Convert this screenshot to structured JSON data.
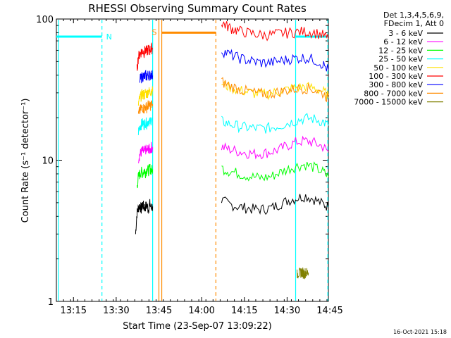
{
  "chart_data": {
    "type": "line",
    "title": "RHESSI Observing Summary Count Rates",
    "xlabel": "Start Time (23-Sep-07 13:09:22)",
    "ylabel": "Count Rate (s⁻¹ detector⁻¹)",
    "yscale": "log",
    "ylim": [
      1,
      100
    ],
    "xlim_minutes": [
      13.5,
      109.0
    ],
    "x_ticks": [
      {
        "label": "13:15",
        "minute": 19.5
      },
      {
        "label": "13:30",
        "minute": 34.5
      },
      {
        "label": "13:45",
        "minute": 49.5
      },
      {
        "label": "14:00",
        "minute": 64.5
      },
      {
        "label": "14:15",
        "minute": 79.5
      },
      {
        "label": "14:30",
        "minute": 94.5
      },
      {
        "label": "14:45",
        "minute": 109.5
      }
    ],
    "y_ticks": [
      {
        "label": "1",
        "value": 1
      },
      {
        "label": "10",
        "value": 10
      },
      {
        "label": "100",
        "value": 100
      }
    ],
    "legend_header": [
      "Det 1,3,4,5,6,9,",
      "FDecim 1, Att 0"
    ],
    "legend_position": "right",
    "series": [
      {
        "name": "3 - 6 keV",
        "color": "#000000",
        "segments": [
          {
            "x": [
              41.3,
              41.8,
              42.3,
              42.8,
              43.3,
              43.8,
              44.3,
              44.8,
              45.3,
              45.8,
              46.3,
              46.8,
              47.3
            ],
            "y": [
              3.0,
              4.2,
              4.6,
              4.8,
              4.5,
              4.9,
              4.6,
              4.7,
              4.8,
              4.5,
              4.9,
              4.6,
              4.7
            ]
          },
          {
            "x": [
              71.5,
              74,
              77,
              80,
              83,
              86,
              89,
              92,
              95,
              98,
              101,
              104,
              107,
              109
            ],
            "y": [
              5.2,
              4.9,
              4.7,
              4.6,
              4.5,
              4.5,
              4.6,
              4.9,
              5.2,
              5.4,
              5.6,
              5.3,
              4.9,
              4.7
            ]
          }
        ]
      },
      {
        "name": "6 - 12 keV",
        "color": "#ff00ff",
        "segments": [
          {
            "x": [
              42.3,
              42.8,
              43.3,
              43.8,
              44.3,
              44.8,
              45.3,
              45.8,
              46.3,
              46.8,
              47.3
            ],
            "y": [
              10.3,
              11.0,
              11.4,
              11.7,
              11.3,
              12.0,
              11.5,
              12.2,
              11.8,
              12.4,
              12.0
            ]
          },
          {
            "x": [
              71.5,
              74,
              77,
              80,
              83,
              86,
              89,
              92,
              95,
              98,
              101,
              104,
              107,
              109
            ],
            "y": [
              12.4,
              12.0,
              11.6,
              11.3,
              11.1,
              11.2,
              11.5,
              12.0,
              12.8,
              13.5,
              13.7,
              13.3,
              12.5,
              11.5
            ]
          }
        ]
      },
      {
        "name": "12 - 25 keV",
        "color": "#00ff00",
        "segments": [
          {
            "x": [
              41.8,
              42.3,
              42.8,
              43.3,
              43.8,
              44.3,
              44.8,
              45.3,
              45.8,
              46.3,
              46.8,
              47.3
            ],
            "y": [
              6.5,
              7.6,
              8.0,
              8.3,
              8.1,
              8.5,
              8.2,
              8.7,
              8.4,
              8.8,
              8.5,
              8.6
            ]
          },
          {
            "x": [
              71.5,
              74,
              77,
              80,
              83,
              86,
              89,
              92,
              95,
              98,
              101,
              104,
              107,
              109
            ],
            "y": [
              8.8,
              8.4,
              8.1,
              7.8,
              7.6,
              7.5,
              7.7,
              8.2,
              8.7,
              9.1,
              9.3,
              8.9,
              8.3,
              7.6
            ]
          }
        ]
      },
      {
        "name": "25 - 50 keV",
        "color": "#00ffff",
        "segments": [
          {
            "x": [
              42.3,
              42.8,
              43.3,
              43.8,
              44.3,
              44.8,
              45.3,
              45.8,
              46.3,
              46.8,
              47.3
            ],
            "y": [
              16.0,
              17.3,
              17.9,
              18.4,
              17.8,
              18.7,
              18.1,
              19.2,
              18.5,
              19.5,
              18.9
            ]
          },
          {
            "x": [
              71.5,
              74,
              77,
              80,
              83,
              86,
              89,
              92,
              95,
              98,
              101,
              104,
              107,
              109
            ],
            "y": [
              18.9,
              18.1,
              17.5,
              17.1,
              16.9,
              16.8,
              17.0,
              17.6,
              18.4,
              19.2,
              19.8,
              19.6,
              18.8,
              17.6
            ]
          }
        ]
      },
      {
        "name": "50 - 100 keV",
        "color": "#ffe000",
        "segments": [
          {
            "x": [
              42.3,
              42.8,
              43.3,
              43.8,
              44.3,
              44.8,
              45.3,
              45.8,
              46.3,
              46.8,
              47.3
            ],
            "y": [
              25.0,
              27.5,
              28.7,
              29.5,
              28.8,
              30.2,
              29.6,
              31.0,
              30.3,
              31.6,
              30.8
            ]
          },
          {
            "x": [
              71.5,
              74,
              77,
              80,
              83,
              86,
              89,
              92,
              95,
              98,
              101,
              104,
              107,
              109
            ],
            "y": [
              35.2,
              33.2,
              31.6,
              30.6,
              29.8,
              29.4,
              29.8,
              30.8,
              31.8,
              32.8,
              33.2,
              32.5,
              30.8,
              29.0
            ]
          }
        ]
      },
      {
        "name": "100 - 300 keV",
        "color": "#ff0000",
        "segments": [
          {
            "x": [
              41.8,
              42.3,
              42.8,
              43.3,
              43.8,
              44.3,
              44.8,
              45.3,
              45.8,
              46.3,
              46.8,
              47.3
            ],
            "y": [
              44.0,
              54.0,
              57.0,
              58.5,
              59.5,
              58.0,
              60.5,
              59.0,
              61.5,
              60.0,
              62.5,
              61.0
            ]
          },
          {
            "x": [
              71.5,
              73,
              75,
              77,
              80,
              83,
              86,
              89,
              92,
              95,
              98,
              101,
              104,
              107,
              109
            ],
            "y": [
              95.0,
              90.0,
              86.0,
              83.0,
              80.5,
              78.5,
              77.0,
              77.5,
              79.0,
              80.0,
              81.0,
              81.5,
              80.5,
              77.0,
              72.0
            ]
          }
        ]
      },
      {
        "name": "300 - 800 keV",
        "color": "#0000ff",
        "segments": [
          {
            "x": [
              42.8,
              43.3,
              43.8,
              44.3,
              44.8,
              45.3,
              45.8,
              46.3,
              46.8,
              47.3
            ],
            "y": [
              37.0,
              38.5,
              39.5,
              38.8,
              40.0,
              39.2,
              40.5,
              39.6,
              40.8,
              39.8
            ]
          },
          {
            "x": [
              71.5,
              74,
              77,
              80,
              83,
              86,
              89,
              92,
              95,
              98,
              101,
              104,
              107,
              109
            ],
            "y": [
              60.0,
              56.5,
              53.5,
              51.5,
              50.0,
              49.0,
              49.2,
              50.5,
              52.0,
              53.0,
              53.2,
              51.5,
              48.0,
              43.5
            ]
          }
        ]
      },
      {
        "name": "800 - 7000 keV",
        "color": "#ff8c00",
        "segments": [
          {
            "x": [
              42.3,
              42.8,
              43.3,
              43.8,
              44.3,
              44.8,
              45.3,
              45.8,
              46.3,
              46.8,
              47.3
            ],
            "y": [
              21.0,
              22.5,
              23.2,
              23.8,
              23.1,
              24.2,
              23.5,
              24.8,
              24.0,
              25.0,
              24.3
            ]
          },
          {
            "x": [
              71.5,
              74,
              77,
              80,
              83,
              86,
              89,
              92,
              95,
              98,
              101,
              104,
              107,
              109
            ],
            "y": [
              36.0,
              34.0,
              32.2,
              31.0,
              30.0,
              29.6,
              29.8,
              30.6,
              31.4,
              32.2,
              32.5,
              31.6,
              29.8,
              27.5
            ]
          }
        ]
      },
      {
        "name": "7000 - 15000 keV",
        "color": "#808000",
        "segments": [
          {
            "x": [
              98.0,
              98.5,
              99.0,
              99.5,
              100.0,
              100.5,
              101.0,
              101.5,
              102.0
            ],
            "y": [
              1.55,
              1.6,
              1.58,
              1.62,
              1.6,
              1.57,
              1.61,
              1.59,
              1.6
            ]
          }
        ]
      }
    ],
    "overlays": {
      "night_segments": [
        {
          "label": "N",
          "x": [
            13.5,
            29.5
          ],
          "y": 75,
          "color": "#00ffff"
        },
        {
          "label": "",
          "x": [
            97.5,
            109.0
          ],
          "y": 75,
          "color": "#00ffff"
        }
      ],
      "saa_segments": [
        {
          "label": "S",
          "x": [
            50.5,
            69.5
          ],
          "y": 80,
          "color": "#ff8c00"
        }
      ],
      "vlines": [
        {
          "x": 14.2,
          "color": "#00ffff",
          "style": "solid"
        },
        {
          "x": 29.5,
          "color": "#00ffff",
          "style": "dashed"
        },
        {
          "x": 47.3,
          "color": "#00ffff",
          "style": "solid"
        },
        {
          "x": 49.5,
          "color": "#ff8c00",
          "style": "solid"
        },
        {
          "x": 50.5,
          "color": "#ff8c00",
          "style": "solid"
        },
        {
          "x": 69.5,
          "color": "#ff8c00",
          "style": "dashed"
        },
        {
          "x": 97.5,
          "color": "#00ffff",
          "style": "solid"
        },
        {
          "x": 108.8,
          "color": "#00ffff",
          "style": "dashed"
        }
      ]
    },
    "timestamp": "16-Oct-2021 15:18"
  }
}
